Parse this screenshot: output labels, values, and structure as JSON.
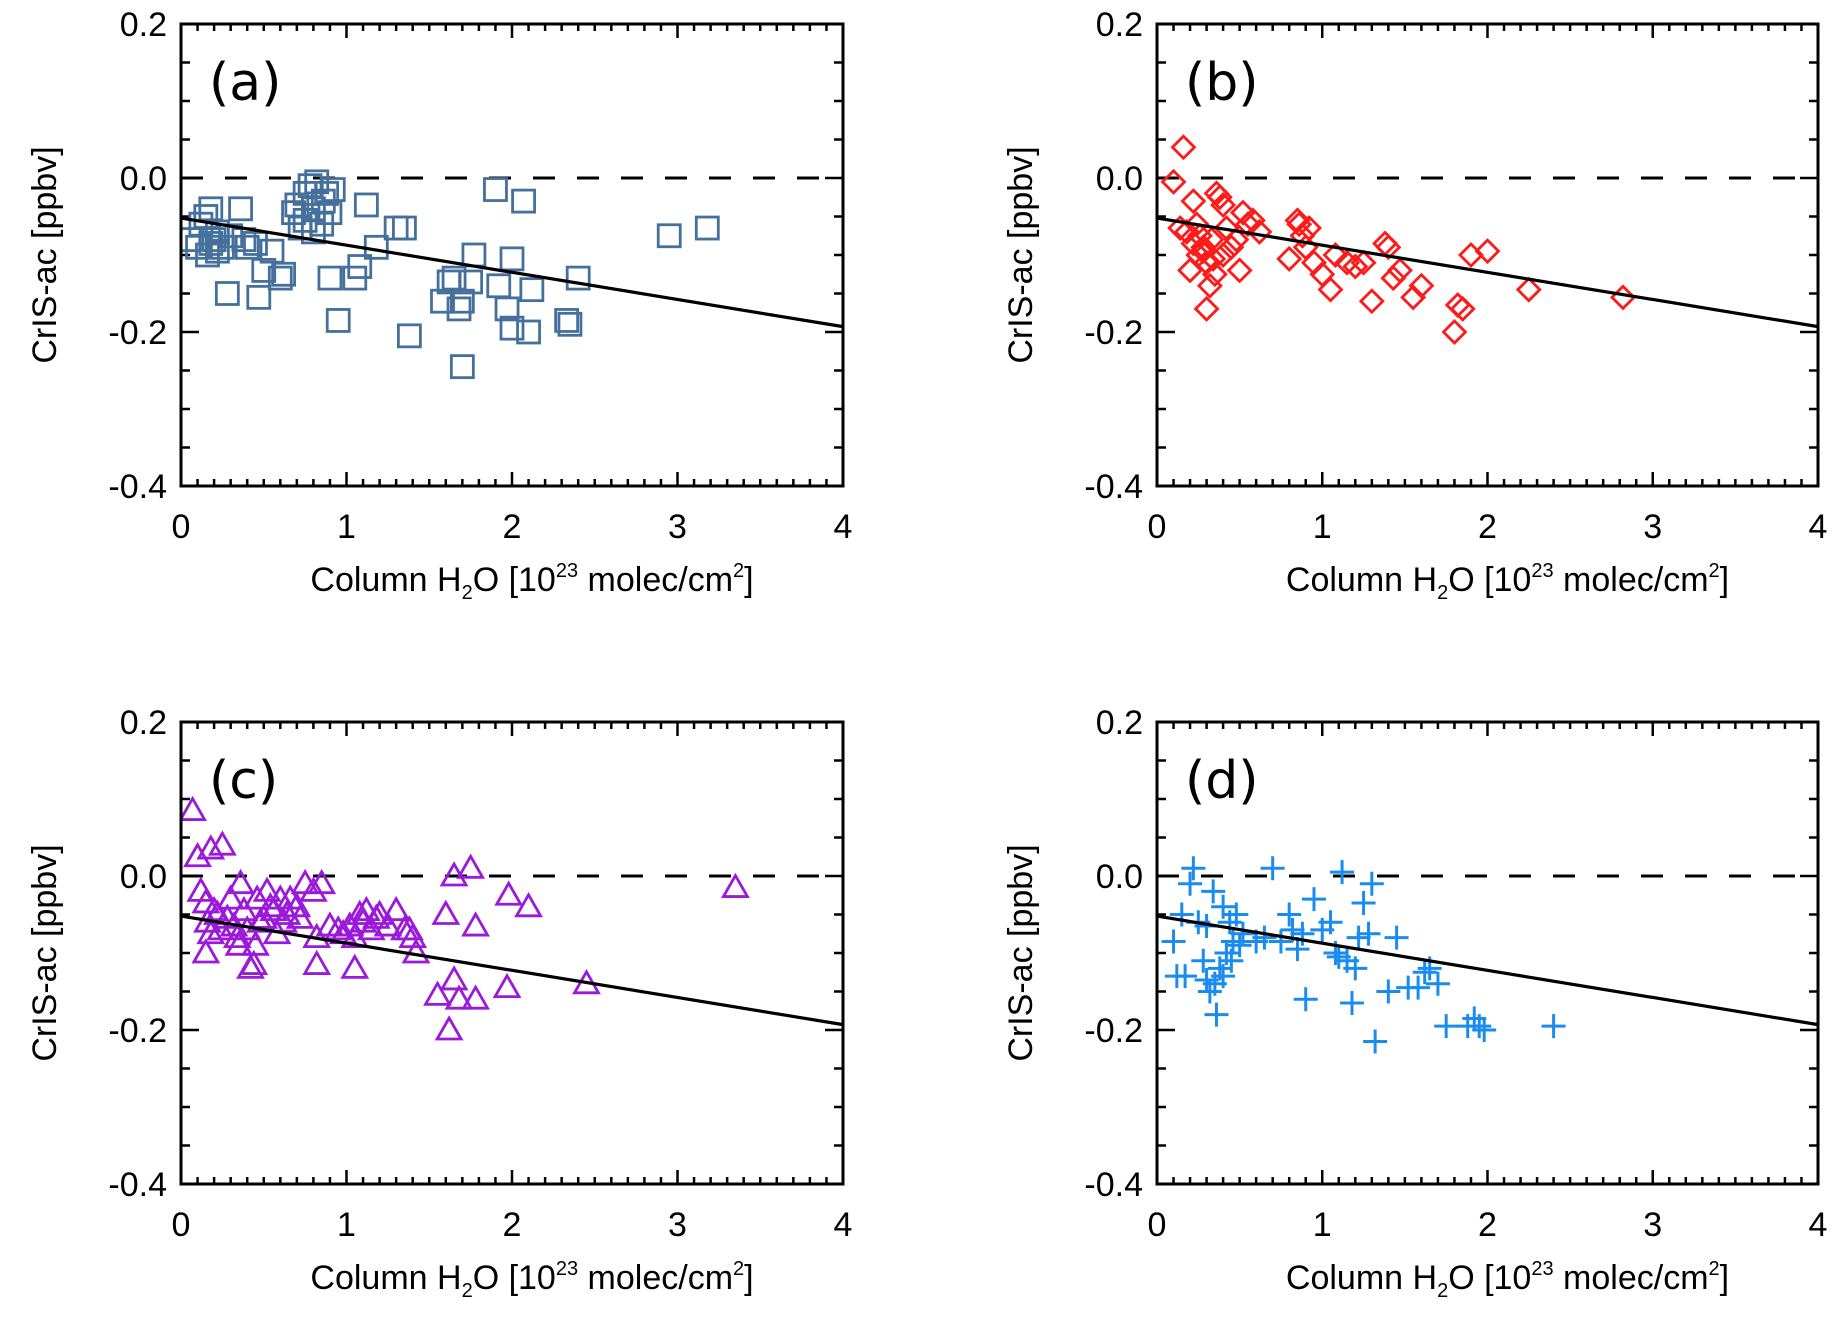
{
  "chart_data": [
    {
      "type": "scatter",
      "panel_label": "(a)",
      "marker": "square",
      "color": "#44709b",
      "xlabel": "Column H₂O [10²³ molec/cm²]",
      "xlabel_parts": {
        "pre": "Column H",
        "sub": "2",
        "mid": "O [10",
        "sup1": "23",
        "post": " molec/cm",
        "sup2": "2",
        "end": "]"
      },
      "ylabel": "CrIS-ac [ppbv]",
      "xlim": [
        0,
        4
      ],
      "ylim": [
        -0.4,
        0.2
      ],
      "xticks": [
        "0",
        "1",
        "2",
        "3",
        "4"
      ],
      "yticks": [
        "-0.4",
        "-0.2",
        "0.0",
        "0.2"
      ],
      "reference_line": {
        "y": 0.0,
        "style": "dashed"
      },
      "fit_line": {
        "x": [
          0,
          4
        ],
        "y": [
          -0.052,
          -0.193
        ]
      },
      "points": [
        [
          0.05,
          -0.08
        ],
        [
          0.1,
          -0.09
        ],
        [
          0.12,
          -0.06
        ],
        [
          0.15,
          -0.05
        ],
        [
          0.16,
          -0.1
        ],
        [
          0.18,
          -0.04
        ],
        [
          0.2,
          -0.08
        ],
        [
          0.22,
          -0.07
        ],
        [
          0.25,
          -0.09
        ],
        [
          0.18,
          -0.085
        ],
        [
          0.22,
          -0.095
        ],
        [
          0.3,
          -0.075
        ],
        [
          0.28,
          -0.15
        ],
        [
          0.36,
          -0.04
        ],
        [
          0.38,
          -0.08
        ],
        [
          0.4,
          -0.09
        ],
        [
          0.45,
          -0.085
        ],
        [
          0.47,
          -0.155
        ],
        [
          0.5,
          -0.12
        ],
        [
          0.55,
          -0.095
        ],
        [
          0.6,
          -0.13
        ],
        [
          0.62,
          -0.125
        ],
        [
          0.68,
          -0.045
        ],
        [
          0.7,
          -0.035
        ],
        [
          0.72,
          -0.065
        ],
        [
          0.75,
          -0.02
        ],
        [
          0.78,
          -0.01
        ],
        [
          0.8,
          -0.04
        ],
        [
          0.82,
          -0.005
        ],
        [
          0.85,
          -0.06
        ],
        [
          0.86,
          -0.03
        ],
        [
          0.88,
          -0.02
        ],
        [
          0.9,
          -0.045
        ],
        [
          0.92,
          -0.015
        ],
        [
          0.8,
          -0.07
        ],
        [
          0.75,
          -0.055
        ],
        [
          0.9,
          -0.13
        ],
        [
          0.95,
          -0.185
        ],
        [
          1.05,
          -0.13
        ],
        [
          1.08,
          -0.115
        ],
        [
          1.12,
          -0.035
        ],
        [
          1.18,
          -0.09
        ],
        [
          1.3,
          -0.065
        ],
        [
          1.35,
          -0.065
        ],
        [
          1.38,
          -0.205
        ],
        [
          1.58,
          -0.16
        ],
        [
          1.62,
          -0.135
        ],
        [
          1.65,
          -0.13
        ],
        [
          1.68,
          -0.17
        ],
        [
          1.7,
          -0.16
        ],
        [
          1.7,
          -0.245
        ],
        [
          1.75,
          -0.135
        ],
        [
          1.77,
          -0.1
        ],
        [
          1.9,
          -0.015
        ],
        [
          1.92,
          -0.14
        ],
        [
          1.97,
          -0.17
        ],
        [
          2.0,
          -0.105
        ],
        [
          2.0,
          -0.195
        ],
        [
          2.07,
          -0.03
        ],
        [
          2.1,
          -0.2
        ],
        [
          2.12,
          -0.145
        ],
        [
          2.33,
          -0.185
        ],
        [
          2.35,
          -0.19
        ],
        [
          2.4,
          -0.13
        ],
        [
          2.95,
          -0.075
        ],
        [
          3.18,
          -0.065
        ]
      ]
    },
    {
      "type": "scatter",
      "panel_label": "(b)",
      "marker": "diamond",
      "color": "#ff1a1a",
      "xlabel": "Column H₂O [10²³ molec/cm²]",
      "xlabel_parts": {
        "pre": "Column H",
        "sub": "2",
        "mid": "O [10",
        "sup1": "23",
        "post": " molec/cm",
        "sup2": "2",
        "end": "]"
      },
      "ylabel": "CrIS-ac [ppbv]",
      "xlim": [
        0,
        4
      ],
      "ylim": [
        -0.4,
        0.2
      ],
      "xticks": [
        "0",
        "1",
        "2",
        "3",
        "4"
      ],
      "yticks": [
        "-0.4",
        "-0.2",
        "0.0",
        "0.2"
      ],
      "reference_line": {
        "y": 0.0,
        "style": "dashed"
      },
      "fit_line": {
        "x": [
          0,
          4
        ],
        "y": [
          -0.052,
          -0.193
        ]
      },
      "points": [
        [
          0.1,
          -0.005
        ],
        [
          0.16,
          0.04
        ],
        [
          0.14,
          -0.065
        ],
        [
          0.18,
          -0.07
        ],
        [
          0.2,
          -0.12
        ],
        [
          0.22,
          -0.085
        ],
        [
          0.22,
          -0.03
        ],
        [
          0.25,
          -0.1
        ],
        [
          0.26,
          -0.075
        ],
        [
          0.28,
          -0.09
        ],
        [
          0.3,
          -0.11
        ],
        [
          0.3,
          -0.17
        ],
        [
          0.32,
          -0.14
        ],
        [
          0.33,
          -0.08
        ],
        [
          0.35,
          -0.125
        ],
        [
          0.36,
          -0.02
        ],
        [
          0.38,
          -0.025
        ],
        [
          0.4,
          -0.035
        ],
        [
          0.4,
          -0.1
        ],
        [
          0.42,
          -0.065
        ],
        [
          0.45,
          -0.09
        ],
        [
          0.48,
          -0.08
        ],
        [
          0.5,
          -0.12
        ],
        [
          0.52,
          -0.045
        ],
        [
          0.55,
          -0.06
        ],
        [
          0.58,
          -0.055
        ],
        [
          0.62,
          -0.07
        ],
        [
          0.28,
          -0.095
        ],
        [
          0.34,
          -0.105
        ],
        [
          0.24,
          -0.06
        ],
        [
          0.8,
          -0.105
        ],
        [
          0.85,
          -0.055
        ],
        [
          0.86,
          -0.06
        ],
        [
          0.88,
          -0.075
        ],
        [
          0.9,
          -0.09
        ],
        [
          0.92,
          -0.065
        ],
        [
          0.95,
          -0.11
        ],
        [
          1.0,
          -0.125
        ],
        [
          1.05,
          -0.145
        ],
        [
          1.08,
          -0.1
        ],
        [
          1.15,
          -0.11
        ],
        [
          1.2,
          -0.115
        ],
        [
          1.25,
          -0.11
        ],
        [
          1.3,
          -0.16
        ],
        [
          1.38,
          -0.085
        ],
        [
          1.4,
          -0.09
        ],
        [
          1.43,
          -0.13
        ],
        [
          1.47,
          -0.12
        ],
        [
          1.55,
          -0.155
        ],
        [
          1.6,
          -0.14
        ],
        [
          1.8,
          -0.2
        ],
        [
          1.82,
          -0.165
        ],
        [
          1.85,
          -0.17
        ],
        [
          1.9,
          -0.1
        ],
        [
          2.0,
          -0.095
        ],
        [
          2.25,
          -0.145
        ],
        [
          2.82,
          -0.155
        ]
      ]
    },
    {
      "type": "scatter",
      "panel_label": "(c)",
      "marker": "triangle",
      "color": "#9b19db",
      "xlabel": "Column H₂O [10²³ molec/cm²]",
      "xlabel_parts": {
        "pre": "Column H",
        "sub": "2",
        "mid": "O [10",
        "sup1": "23",
        "post": " molec/cm",
        "sup2": "2",
        "end": "]"
      },
      "ylabel": "CrIS-ac [ppbv]",
      "xlim": [
        0,
        4
      ],
      "ylim": [
        -0.4,
        0.2
      ],
      "xticks": [
        "0",
        "1",
        "2",
        "3",
        "4"
      ],
      "yticks": [
        "-0.4",
        "-0.2",
        "0.0",
        "0.2"
      ],
      "reference_line": {
        "y": 0.0,
        "style": "dashed"
      },
      "fit_line": {
        "x": [
          0,
          4
        ],
        "y": [
          -0.052,
          -0.193
        ]
      },
      "points": [
        [
          0.07,
          0.085
        ],
        [
          0.1,
          0.025
        ],
        [
          0.18,
          0.035
        ],
        [
          0.25,
          0.04
        ],
        [
          0.12,
          -0.02
        ],
        [
          0.15,
          -0.035
        ],
        [
          0.16,
          -0.06
        ],
        [
          0.18,
          -0.075
        ],
        [
          0.2,
          -0.045
        ],
        [
          0.22,
          -0.05
        ],
        [
          0.24,
          -0.07
        ],
        [
          0.15,
          -0.1
        ],
        [
          0.28,
          -0.055
        ],
        [
          0.3,
          -0.03
        ],
        [
          0.32,
          -0.065
        ],
        [
          0.34,
          -0.08
        ],
        [
          0.36,
          -0.01
        ],
        [
          0.38,
          -0.045
        ],
        [
          0.4,
          -0.07
        ],
        [
          0.42,
          -0.12
        ],
        [
          0.44,
          -0.115
        ],
        [
          0.46,
          -0.03
        ],
        [
          0.48,
          -0.06
        ],
        [
          0.5,
          -0.055
        ],
        [
          0.52,
          -0.02
        ],
        [
          0.54,
          -0.04
        ],
        [
          0.56,
          -0.045
        ],
        [
          0.58,
          -0.075
        ],
        [
          0.6,
          -0.03
        ],
        [
          0.62,
          -0.06
        ],
        [
          0.64,
          -0.05
        ],
        [
          0.66,
          -0.03
        ],
        [
          0.7,
          -0.04
        ],
        [
          0.72,
          -0.055
        ],
        [
          0.75,
          -0.01
        ],
        [
          0.8,
          -0.02
        ],
        [
          0.82,
          -0.08
        ],
        [
          0.85,
          -0.01
        ],
        [
          0.9,
          -0.065
        ],
        [
          0.95,
          -0.07
        ],
        [
          0.98,
          -0.075
        ],
        [
          1.02,
          -0.065
        ],
        [
          1.05,
          -0.08
        ],
        [
          1.08,
          -0.05
        ],
        [
          1.1,
          -0.06
        ],
        [
          1.12,
          -0.045
        ],
        [
          1.15,
          -0.07
        ],
        [
          1.18,
          -0.055
        ],
        [
          1.2,
          -0.05
        ],
        [
          1.25,
          -0.065
        ],
        [
          1.3,
          -0.045
        ],
        [
          1.35,
          -0.07
        ],
        [
          1.38,
          -0.07
        ],
        [
          1.4,
          -0.08
        ],
        [
          1.42,
          -0.1
        ],
        [
          0.45,
          -0.09
        ],
        [
          0.35,
          -0.09
        ],
        [
          1.05,
          -0.12
        ],
        [
          0.82,
          -0.115
        ],
        [
          1.6,
          -0.05
        ],
        [
          1.65,
          0.0
        ],
        [
          1.75,
          0.01
        ],
        [
          1.78,
          -0.065
        ],
        [
          1.55,
          -0.155
        ],
        [
          1.65,
          -0.135
        ],
        [
          1.68,
          -0.16
        ],
        [
          1.78,
          -0.16
        ],
        [
          1.97,
          -0.145
        ],
        [
          1.62,
          -0.2
        ],
        [
          1.98,
          -0.025
        ],
        [
          2.1,
          -0.04
        ],
        [
          2.45,
          -0.14
        ],
        [
          3.35,
          -0.015
        ]
      ]
    },
    {
      "type": "scatter",
      "panel_label": "(d)",
      "marker": "plus",
      "color": "#1a8cf0",
      "xlabel": "Column H₂O [10²³ molec/cm²]",
      "xlabel_parts": {
        "pre": "Column H",
        "sub": "2",
        "mid": "O [10",
        "sup1": "23",
        "post": " molec/cm",
        "sup2": "2",
        "end": "]"
      },
      "ylabel": "CrIS-ac [ppbv]",
      "xlim": [
        0,
        4
      ],
      "ylim": [
        -0.4,
        0.2
      ],
      "xticks": [
        "0",
        "1",
        "2",
        "3",
        "4"
      ],
      "yticks": [
        "-0.4",
        "-0.2",
        "0.0",
        "0.2"
      ],
      "reference_line": {
        "y": 0.0,
        "style": "dashed"
      },
      "fit_line": {
        "x": [
          0,
          4
        ],
        "y": [
          -0.052,
          -0.193
        ]
      },
      "points": [
        [
          0.1,
          -0.085
        ],
        [
          0.12,
          -0.13
        ],
        [
          0.15,
          -0.05
        ],
        [
          0.17,
          -0.13
        ],
        [
          0.2,
          -0.01
        ],
        [
          0.22,
          0.01
        ],
        [
          0.25,
          -0.06
        ],
        [
          0.28,
          -0.11
        ],
        [
          0.3,
          -0.065
        ],
        [
          0.32,
          -0.15
        ],
        [
          0.34,
          -0.02
        ],
        [
          0.35,
          -0.14
        ],
        [
          0.36,
          -0.18
        ],
        [
          0.38,
          -0.12
        ],
        [
          0.4,
          -0.04
        ],
        [
          0.42,
          -0.1
        ],
        [
          0.44,
          -0.06
        ],
        [
          0.46,
          -0.085
        ],
        [
          0.48,
          -0.05
        ],
        [
          0.5,
          -0.09
        ],
        [
          0.52,
          -0.075
        ],
        [
          0.4,
          -0.13
        ],
        [
          0.3,
          -0.135
        ],
        [
          0.45,
          -0.11
        ],
        [
          0.6,
          -0.085
        ],
        [
          0.65,
          -0.08
        ],
        [
          0.7,
          0.01
        ],
        [
          0.75,
          -0.085
        ],
        [
          0.8,
          -0.05
        ],
        [
          0.82,
          -0.07
        ],
        [
          0.85,
          -0.095
        ],
        [
          0.88,
          -0.075
        ],
        [
          0.9,
          -0.16
        ],
        [
          0.95,
          -0.03
        ],
        [
          1.0,
          -0.07
        ],
        [
          1.05,
          -0.06
        ],
        [
          1.08,
          -0.1
        ],
        [
          1.1,
          -0.105
        ],
        [
          1.12,
          0.005
        ],
        [
          1.15,
          -0.11
        ],
        [
          1.18,
          -0.165
        ],
        [
          1.2,
          -0.12
        ],
        [
          1.22,
          -0.08
        ],
        [
          1.25,
          -0.035
        ],
        [
          1.28,
          -0.075
        ],
        [
          1.3,
          -0.01
        ],
        [
          1.32,
          -0.215
        ],
        [
          1.4,
          -0.15
        ],
        [
          1.45,
          -0.08
        ],
        [
          1.52,
          -0.145
        ],
        [
          1.58,
          -0.145
        ],
        [
          1.62,
          -0.125
        ],
        [
          1.65,
          -0.12
        ],
        [
          1.7,
          -0.14
        ],
        [
          1.75,
          -0.195
        ],
        [
          1.88,
          -0.195
        ],
        [
          1.92,
          -0.185
        ],
        [
          1.95,
          -0.195
        ],
        [
          1.98,
          -0.2
        ],
        [
          2.4,
          -0.195
        ]
      ]
    }
  ]
}
